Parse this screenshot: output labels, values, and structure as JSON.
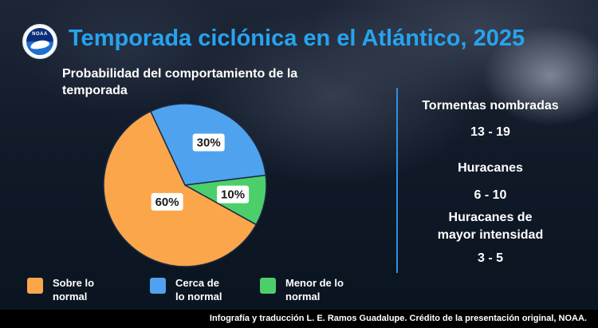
{
  "header": {
    "logo_text": "NOAA",
    "title": "Temporada ciclónica en el Atlántico, 2025"
  },
  "chart_data": {
    "type": "pie",
    "title": "Probabilidad del comportamiento de la temporada",
    "slices": [
      {
        "label": "Sobre lo normal",
        "value": 60,
        "display": "60%",
        "color": "#fba64a"
      },
      {
        "label": "Cerca de lo normal",
        "value": 30,
        "display": "30%",
        "color": "#4fa3ee"
      },
      {
        "label": "Menor de lo normal",
        "value": 10,
        "display": "10%",
        "color": "#4ccf6b"
      }
    ],
    "legend_placement": "bottom"
  },
  "legend": [
    {
      "line1": "Sobre lo",
      "line2": "normal"
    },
    {
      "line1": "Cerca de",
      "line2": "lo normal"
    },
    {
      "line1": "Menor de lo",
      "line2": "normal"
    }
  ],
  "stats": {
    "named_storms_label": "Tormentas nombradas",
    "named_storms_value": "13 - 19",
    "hurricanes_label": "Huracanes",
    "hurricanes_value": "6 - 10",
    "major_label_line1": "Huracanes de",
    "major_label_line2": "mayor intensidad",
    "major_value": "3 - 5"
  },
  "footer": {
    "credit": "Infografía y traducción L. E. Ramos Guadalupe. Crédito de la presentación original, NOAA."
  }
}
